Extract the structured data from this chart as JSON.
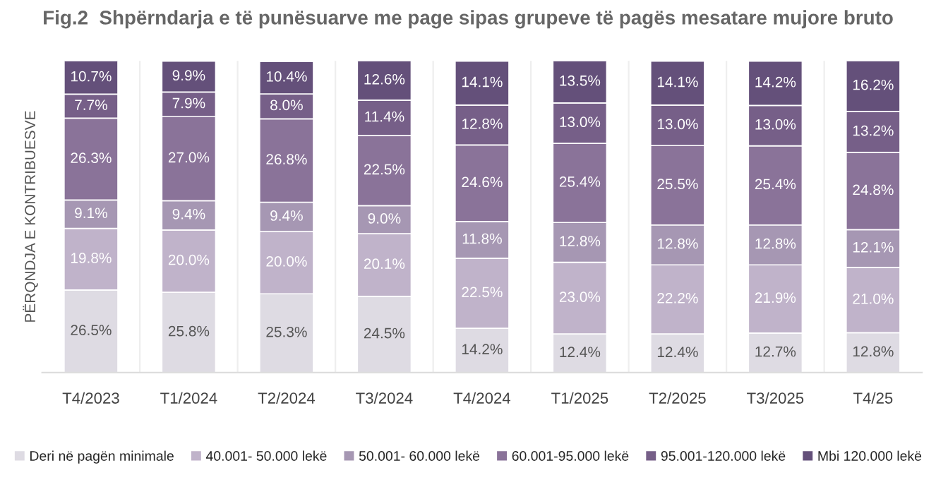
{
  "chart_data": {
    "type": "bar",
    "stacked": true,
    "title": "Fig.2  Shpërndarja e të punësuarve me page sipas grupeve të pagës mesatare mujore bruto",
    "ylabel": "PËRQNDJA E KONTRIBUESVE",
    "categories": [
      "T4/2023",
      "T1/2024",
      "T2/2024",
      "T3/2024",
      "T4/2024",
      "T1/2025",
      "T2/2025",
      "T3/2025",
      "T4/25"
    ],
    "series": [
      {
        "name": "Deri në pagën minimale",
        "color": "#dedbe3",
        "values": [
          26.5,
          25.8,
          25.3,
          24.5,
          14.2,
          12.4,
          12.4,
          12.7,
          12.8
        ],
        "value_labels": [
          "26.5%",
          "25.8%",
          "25.3%",
          "24.5%",
          "14.2%",
          "12.4%",
          "12.4%",
          "12.7%",
          "12.8%"
        ]
      },
      {
        "name": "40.001- 50.000 lekë",
        "color": "#c0b3ca",
        "values": [
          19.8,
          20.0,
          20.0,
          20.1,
          22.5,
          23.0,
          22.2,
          21.9,
          21.0
        ],
        "value_labels": [
          "19.8%",
          "20.0%",
          "20.0%",
          "20.1%",
          "22.5%",
          "23.0%",
          "22.2%",
          "21.9%",
          "21.0%"
        ]
      },
      {
        "name": "50.001- 60.000 lekë",
        "color": "#a697b3",
        "values": [
          9.1,
          9.4,
          9.4,
          9.0,
          11.8,
          12.8,
          12.8,
          12.8,
          12.1
        ],
        "value_labels": [
          "9.1%",
          "9.4%",
          "9.4%",
          "9.0%",
          "11.8%",
          "12.8%",
          "12.8%",
          "12.8%",
          "12.1%"
        ]
      },
      {
        "name": "60.001-95.000 lekë",
        "color": "#8a7399",
        "values": [
          26.3,
          27.0,
          26.8,
          22.5,
          24.6,
          25.4,
          25.5,
          25.4,
          24.8
        ],
        "value_labels": [
          "26.3%",
          "27.0%",
          "26.8%",
          "22.5%",
          "24.6%",
          "25.4%",
          "25.5%",
          "25.4%",
          "24.8%"
        ]
      },
      {
        "name": "95.001-120.000 lekë",
        "color": "#765f88",
        "values": [
          7.7,
          7.9,
          8.0,
          11.4,
          12.8,
          13.0,
          13.0,
          13.0,
          13.2
        ],
        "value_labels": [
          "7.7%",
          "7.9%",
          "8.0%",
          "11.4%",
          "12.8%",
          "13.0%",
          "13.0%",
          "13.0%",
          "13.2%"
        ]
      },
      {
        "name": "Mbi 120.000 lekë",
        "color": "#64507a",
        "values": [
          10.7,
          9.9,
          10.4,
          12.6,
          14.1,
          13.5,
          14.1,
          14.2,
          16.2
        ],
        "value_labels": [
          "10.7%",
          "9.9%",
          "10.4%",
          "12.6%",
          "14.1%",
          "13.5%",
          "14.1%",
          "14.2%",
          "16.2%"
        ]
      }
    ],
    "legend": "bottom"
  }
}
